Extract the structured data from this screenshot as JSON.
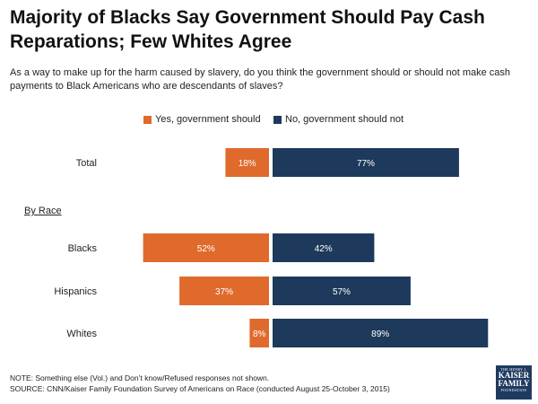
{
  "header": {
    "title": "Majority of Blacks Say Government Should Pay Cash Reparations; Few Whites Agree",
    "question": "As a way to make up for the harm caused by slavery, do you think the government should or should not make cash payments to Black Americans who are descendants of slaves?"
  },
  "section_label": "By Race",
  "footer": {
    "note": "NOTE: Something else (Vol.) and Don’t know/Refused responses not shown.",
    "source": "SOURCE: CNN/Kaiser Family Foundation Survey of Americans on Race (conducted August 25-October 3, 2015)"
  },
  "logo": {
    "line1": "THE HENRY J.",
    "line2": "KAISER",
    "line3": "FAMILY",
    "line4": "FOUNDATION"
  },
  "colors": {
    "yes": "#e06a2c",
    "no": "#1d3a5c"
  },
  "chart_data": {
    "type": "bar",
    "orientation": "diverging-horizontal",
    "categories": [
      "Total",
      "Blacks",
      "Hispanics",
      "Whites"
    ],
    "series": [
      {
        "name": "Yes, government should",
        "values": [
          18,
          52,
          37,
          8
        ]
      },
      {
        "name": "No, government should not",
        "values": [
          77,
          42,
          57,
          89
        ]
      }
    ],
    "value_format": "{v}%",
    "legend_position": "top",
    "grid": false
  }
}
